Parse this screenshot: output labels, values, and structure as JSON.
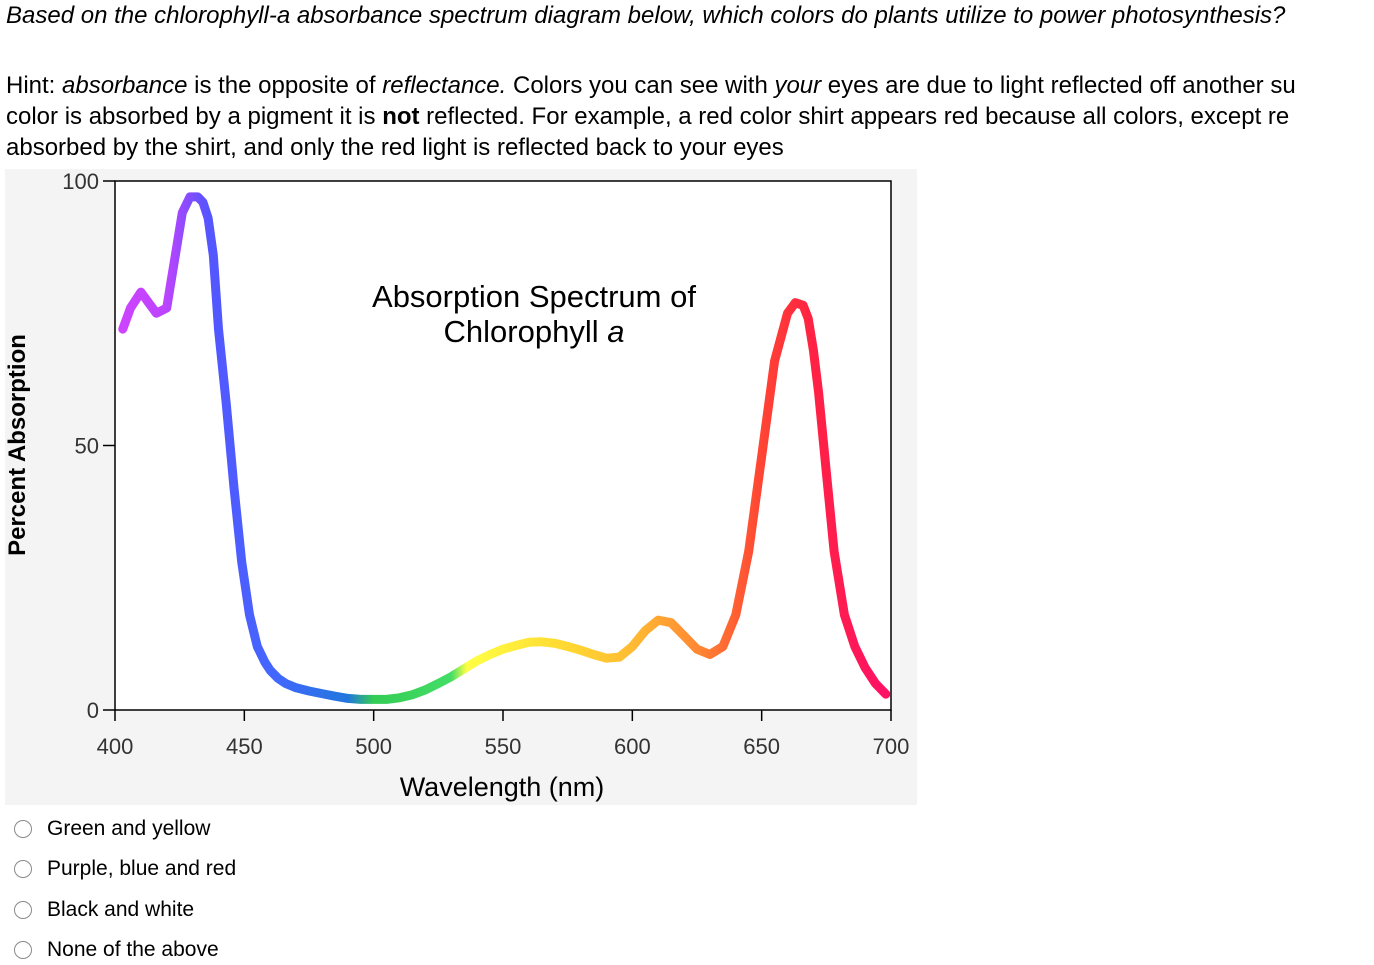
{
  "question": {
    "text": "Based on the chlorophyll-a absorbance spectrum diagram below, which colors do plants utilize to power photosynthesis?"
  },
  "hint": {
    "l1_a": "Hint: ",
    "l1_b": "absorbance",
    "l1_c": " is the opposite of ",
    "l1_d": "reflectance.",
    "l1_e": " Colors you can see with ",
    "l1_f": "your",
    "l1_g": " eyes are due to light reflected off another su",
    "l2_a": "color is absorbed by a pigment it is ",
    "l2_b": "not",
    "l2_c": "  reflected. For example, a red color shirt appears red because all colors, except re",
    "l3": "absorbed by the shirt, and only the red light is reflected back to your eyes"
  },
  "chart_data": {
    "type": "line",
    "title_line1": "Absorption Spectrum of",
    "title_line2": "Chlorophyll ",
    "title_italic": "a",
    "xlabel": "Wavelength (nm)",
    "ylabel": "Percent Absorption",
    "xlim": [
      400,
      700
    ],
    "ylim": [
      0,
      100
    ],
    "x_ticks": [
      "400",
      "450",
      "500",
      "550",
      "600",
      "650",
      "700"
    ],
    "y_ticks": [
      "100",
      "50",
      "0"
    ],
    "grid": false,
    "series": [
      {
        "x": [
          403,
          406,
          410,
          413,
          416,
          420,
          423,
          426,
          429,
          432,
          434,
          436,
          438,
          440,
          443,
          446,
          449,
          452,
          455,
          458,
          460,
          463,
          466,
          470,
          475,
          480,
          485,
          490,
          495,
          500,
          505,
          510,
          515,
          520,
          525,
          530,
          535,
          540,
          545,
          550,
          555,
          560,
          565,
          570,
          575,
          580,
          585,
          590,
          595,
          600,
          605,
          610,
          615,
          620,
          625,
          630,
          635,
          640,
          645,
          650,
          655,
          660,
          663,
          666,
          668,
          670,
          672,
          675,
          678,
          682,
          686,
          690,
          694,
          698
        ],
        "y": [
          72,
          76,
          79,
          77,
          75,
          76,
          85,
          94,
          97,
          97,
          96,
          93,
          86,
          72,
          58,
          42,
          28,
          18,
          12,
          9,
          7.5,
          6,
          5,
          4.2,
          3.6,
          3.1,
          2.6,
          2.2,
          2,
          2,
          2,
          2.3,
          2.9,
          3.8,
          5,
          6.3,
          7.8,
          9.3,
          10.5,
          11.5,
          12.2,
          12.8,
          12.9,
          12.6,
          12,
          11.3,
          10.5,
          9.8,
          10,
          12,
          15,
          17,
          16.5,
          14,
          11.5,
          10.5,
          12,
          18,
          30,
          48,
          66,
          75,
          77,
          76.5,
          74,
          68,
          60,
          45,
          30,
          18,
          12,
          8,
          5,
          3
        ]
      }
    ],
    "gradient_stops": [
      {
        "x": 403,
        "color": "#cc44ff"
      },
      {
        "x": 420,
        "color": "#bb44ff"
      },
      {
        "x": 436,
        "color": "#5555ff"
      },
      {
        "x": 460,
        "color": "#4466ff"
      },
      {
        "x": 490,
        "color": "#2277dd"
      },
      {
        "x": 500,
        "color": "#33cc55"
      },
      {
        "x": 530,
        "color": "#44dd66"
      },
      {
        "x": 536,
        "color": "#ffff44"
      },
      {
        "x": 570,
        "color": "#ffdd33"
      },
      {
        "x": 600,
        "color": "#ffbb33"
      },
      {
        "x": 625,
        "color": "#ff8833"
      },
      {
        "x": 650,
        "color": "#ff4433"
      },
      {
        "x": 670,
        "color": "#ff2244"
      },
      {
        "x": 698,
        "color": "#ff1166"
      }
    ]
  },
  "options": [
    {
      "label": "Green and yellow"
    },
    {
      "label": "Purple, blue and red"
    },
    {
      "label": "Black and white"
    },
    {
      "label": "None of the above"
    }
  ]
}
